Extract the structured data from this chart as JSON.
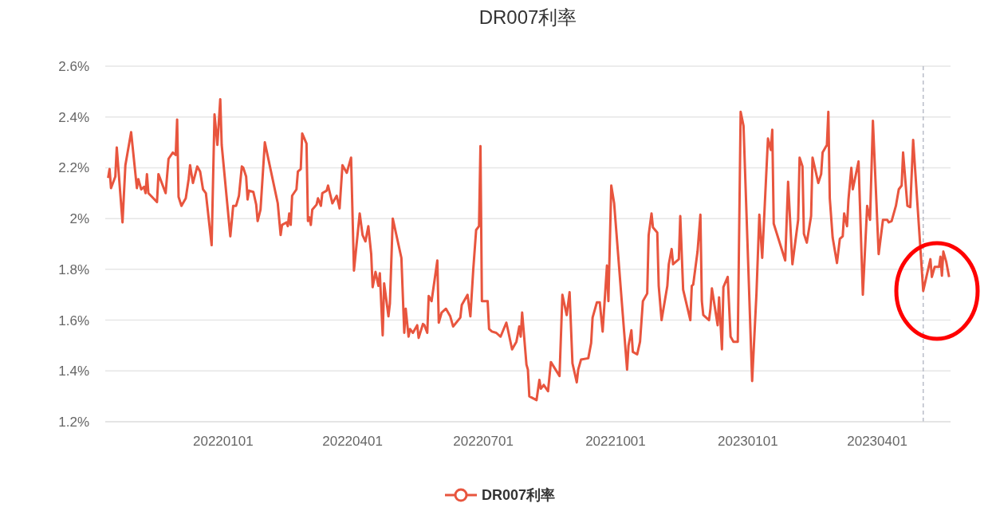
{
  "chart_data": {
    "type": "line",
    "title": "DR007利率",
    "x": [
      "2021-10-13",
      "2021-10-14",
      "2021-10-15",
      "2021-10-18",
      "2021-10-19",
      "2021-10-23",
      "2021-10-25",
      "2021-10-29",
      "2021-11-02",
      "2021-11-03",
      "2021-11-05",
      "2021-11-07",
      "2021-11-08",
      "2021-11-09",
      "2021-11-10",
      "2021-11-16",
      "2021-11-17",
      "2021-11-22",
      "2021-11-24",
      "2021-11-27",
      "2021-11-29",
      "2021-11-30",
      "2021-12-01",
      "2021-12-03",
      "2021-12-06",
      "2021-12-08",
      "2021-12-09",
      "2021-12-11",
      "2021-12-14",
      "2021-12-16",
      "2021-12-18",
      "2021-12-20",
      "2021-12-24",
      "2021-12-26",
      "2021-12-28",
      "2021-12-30",
      "2021-12-31",
      "2022-01-06",
      "2022-01-08",
      "2022-01-10",
      "2022-01-12",
      "2022-01-14",
      "2022-01-15",
      "2022-01-17",
      "2022-01-18",
      "2022-01-19",
      "2022-01-22",
      "2022-01-24",
      "2022-01-25",
      "2022-01-27",
      "2022-01-30",
      "2022-02-08",
      "2022-02-10",
      "2022-02-11",
      "2022-02-14",
      "2022-02-15",
      "2022-02-16",
      "2022-02-17",
      "2022-02-18",
      "2022-02-21",
      "2022-02-22",
      "2022-02-24",
      "2022-02-25",
      "2022-02-28",
      "2022-03-01",
      "2022-03-02",
      "2022-03-03",
      "2022-03-04",
      "2022-03-07",
      "2022-03-08",
      "2022-03-10",
      "2022-03-11",
      "2022-03-14",
      "2022-03-15",
      "2022-03-18",
      "2022-03-21",
      "2022-03-23",
      "2022-03-25",
      "2022-03-28",
      "2022-03-31",
      "2022-04-02",
      "2022-04-06",
      "2022-04-08",
      "2022-04-10",
      "2022-04-12",
      "2022-04-14",
      "2022-04-15",
      "2022-04-17",
      "2022-04-19",
      "2022-04-20",
      "2022-04-22",
      "2022-04-23",
      "2022-04-26",
      "2022-04-27",
      "2022-04-29",
      "2022-05-05",
      "2022-05-07",
      "2022-05-08",
      "2022-05-10",
      "2022-05-11",
      "2022-05-13",
      "2022-05-16",
      "2022-05-17",
      "2022-05-20",
      "2022-05-21",
      "2022-05-23",
      "2022-05-24",
      "2022-05-26",
      "2022-05-30",
      "2022-05-31",
      "2022-06-02",
      "2022-06-05",
      "2022-06-08",
      "2022-06-10",
      "2022-06-15",
      "2022-06-16",
      "2022-06-20",
      "2022-06-22",
      "2022-06-24",
      "2022-06-26",
      "2022-06-28",
      "2022-06-29",
      "2022-06-30",
      "2022-07-04",
      "2022-07-05",
      "2022-07-07",
      "2022-07-10",
      "2022-07-13",
      "2022-07-17",
      "2022-07-18",
      "2022-07-21",
      "2022-07-24",
      "2022-07-26",
      "2022-07-27",
      "2022-07-28",
      "2022-07-31",
      "2022-08-01",
      "2022-08-02",
      "2022-08-07",
      "2022-08-09",
      "2022-08-10",
      "2022-08-12",
      "2022-08-15",
      "2022-08-17",
      "2022-08-23",
      "2022-08-25",
      "2022-08-28",
      "2022-08-30",
      "2022-09-01",
      "2022-09-04",
      "2022-09-05",
      "2022-09-07",
      "2022-09-12",
      "2022-09-14",
      "2022-09-15",
      "2022-09-18",
      "2022-09-20",
      "2022-09-22",
      "2022-09-25",
      "2022-09-26",
      "2022-09-28",
      "2022-09-30",
      "2022-10-07",
      "2022-10-09",
      "2022-10-10",
      "2022-10-12",
      "2022-10-13",
      "2022-10-16",
      "2022-10-18",
      "2022-10-20",
      "2022-10-23",
      "2022-10-24",
      "2022-10-26",
      "2022-10-27",
      "2022-10-30",
      "2022-10-31",
      "2022-11-02",
      "2022-11-06",
      "2022-11-07",
      "2022-11-09",
      "2022-11-10",
      "2022-11-14",
      "2022-11-15",
      "2022-11-17",
      "2022-11-22",
      "2022-11-23",
      "2022-11-24",
      "2022-11-27",
      "2022-11-29",
      "2022-11-30",
      "2022-12-01",
      "2022-12-05",
      "2022-12-06",
      "2022-12-07",
      "2022-12-11",
      "2022-12-12",
      "2022-12-14",
      "2022-12-15",
      "2022-12-18",
      "2022-12-20",
      "2022-12-22",
      "2022-12-25",
      "2022-12-27",
      "2022-12-29",
      "2023-01-04",
      "2023-01-07",
      "2023-01-09",
      "2023-01-11",
      "2023-01-15",
      "2023-01-17",
      "2023-01-18",
      "2023-01-19",
      "2023-01-27",
      "2023-01-29",
      "2023-02-01",
      "2023-02-05",
      "2023-02-06",
      "2023-02-08",
      "2023-02-09",
      "2023-02-11",
      "2023-02-14",
      "2023-02-15",
      "2023-02-19",
      "2023-02-21",
      "2023-02-22",
      "2023-02-25",
      "2023-02-26",
      "2023-02-27",
      "2023-03-01",
      "2023-03-04",
      "2023-03-06",
      "2023-03-08",
      "2023-03-09",
      "2023-03-11",
      "2023-03-12",
      "2023-03-14",
      "2023-03-15",
      "2023-03-19",
      "2023-03-22",
      "2023-03-25",
      "2023-03-27",
      "2023-03-29",
      "2023-04-02",
      "2023-04-05",
      "2023-04-08",
      "2023-04-09",
      "2023-04-11",
      "2023-04-14",
      "2023-04-16",
      "2023-04-18",
      "2023-04-19",
      "2023-04-22",
      "2023-04-24",
      "2023-04-26",
      "2023-05-03",
      "2023-05-08",
      "2023-05-09",
      "2023-05-11",
      "2023-05-14",
      "2023-05-15",
      "2023-05-16",
      "2023-05-17",
      "2023-05-19",
      "2023-05-21"
    ],
    "series": [
      {
        "name": "DR007利率",
        "color": "#e8553e",
        "values": [
          2.16,
          2.195,
          2.12,
          2.165,
          2.28,
          1.985,
          2.21,
          2.34,
          2.12,
          2.155,
          2.115,
          2.125,
          2.1,
          2.175,
          2.1,
          2.065,
          2.175,
          2.1,
          2.235,
          2.26,
          2.25,
          2.39,
          2.085,
          2.05,
          2.08,
          2.155,
          2.21,
          2.14,
          2.205,
          2.185,
          2.115,
          2.1,
          1.895,
          2.41,
          2.29,
          2.47,
          2.29,
          1.93,
          2.05,
          2.05,
          2.09,
          2.205,
          2.2,
          2.165,
          2.075,
          2.11,
          2.105,
          2.055,
          1.99,
          2.035,
          2.3,
          2.06,
          1.935,
          1.975,
          1.985,
          1.97,
          2.02,
          1.975,
          2.09,
          2.115,
          2.185,
          2.195,
          2.335,
          2.295,
          1.99,
          2.005,
          1.975,
          2.035,
          2.055,
          2.08,
          2.05,
          2.1,
          2.11,
          2.13,
          2.06,
          2.09,
          2.04,
          2.21,
          2.18,
          2.24,
          1.795,
          2.02,
          1.935,
          1.91,
          1.97,
          1.86,
          1.73,
          1.79,
          1.735,
          1.785,
          1.54,
          1.745,
          1.615,
          1.665,
          2.0,
          1.845,
          1.55,
          1.645,
          1.535,
          1.565,
          1.55,
          1.58,
          1.53,
          1.585,
          1.58,
          1.55,
          1.695,
          1.675,
          1.835,
          1.59,
          1.63,
          1.645,
          1.615,
          1.575,
          1.61,
          1.66,
          1.7,
          1.615,
          1.8,
          1.955,
          1.97,
          2.285,
          1.675,
          1.675,
          1.565,
          1.555,
          1.55,
          1.535,
          1.59,
          1.565,
          1.485,
          1.515,
          1.575,
          1.535,
          1.63,
          1.425,
          1.405,
          1.3,
          1.285,
          1.365,
          1.33,
          1.345,
          1.32,
          1.435,
          1.38,
          1.7,
          1.62,
          1.71,
          1.43,
          1.355,
          1.405,
          1.445,
          1.45,
          1.51,
          1.61,
          1.67,
          1.67,
          1.555,
          1.815,
          1.675,
          2.13,
          2.06,
          1.55,
          1.405,
          1.5,
          1.56,
          1.475,
          1.465,
          1.515,
          1.675,
          1.705,
          1.935,
          2.02,
          1.965,
          1.945,
          1.735,
          1.6,
          1.735,
          1.82,
          1.88,
          1.82,
          1.84,
          2.01,
          1.72,
          1.6,
          1.735,
          1.74,
          1.87,
          2.015,
          1.675,
          1.62,
          1.6,
          1.645,
          1.725,
          1.58,
          1.69,
          1.485,
          1.73,
          1.77,
          1.535,
          1.515,
          1.515,
          2.42,
          2.365,
          1.36,
          1.705,
          2.015,
          1.845,
          2.315,
          2.27,
          2.35,
          1.98,
          1.835,
          2.145,
          1.82,
          1.995,
          2.24,
          2.205,
          1.94,
          1.905,
          2.01,
          2.24,
          2.14,
          2.175,
          2.26,
          2.29,
          2.42,
          2.08,
          1.925,
          1.825,
          1.92,
          1.93,
          2.02,
          1.97,
          2.075,
          2.2,
          2.115,
          2.225,
          1.7,
          2.05,
          1.995,
          2.385,
          1.86,
          1.995,
          1.995,
          1.985,
          1.99,
          2.05,
          2.115,
          2.13,
          2.26,
          2.05,
          2.045,
          2.31,
          1.715,
          1.84,
          1.77,
          1.81,
          1.81,
          1.85,
          1.775,
          1.87,
          1.83,
          1.77
        ]
      }
    ],
    "xlim": [
      "2021-10-11",
      "2023-05-22"
    ],
    "xticks": [
      {
        "value": "2022-01-01",
        "label": "20220101"
      },
      {
        "value": "2022-04-01",
        "label": "20220401"
      },
      {
        "value": "2022-07-01",
        "label": "20220701"
      },
      {
        "value": "2022-10-01",
        "label": "20221001"
      },
      {
        "value": "2023-01-01",
        "label": "20230101"
      },
      {
        "value": "2023-04-01",
        "label": "20230401"
      }
    ],
    "ylim": [
      1.2,
      2.6
    ],
    "yticks": [
      {
        "value": 1.2,
        "label": "1.2%"
      },
      {
        "value": 1.4,
        "label": "1.4%"
      },
      {
        "value": 1.6,
        "label": "1.6%"
      },
      {
        "value": 1.8,
        "label": "1.8%"
      },
      {
        "value": 2,
        "label": "2%"
      },
      {
        "value": 2.2,
        "label": "2.2%"
      },
      {
        "value": 2.4,
        "label": "2.4%"
      },
      {
        "value": 2.6,
        "label": "2.6%"
      }
    ],
    "ref_lines": [
      {
        "axis": "x",
        "value": "2023-05-03",
        "color": "#b8bcc8",
        "line_style": "dashed"
      }
    ],
    "grid": "y",
    "legend": "bottom"
  }
}
